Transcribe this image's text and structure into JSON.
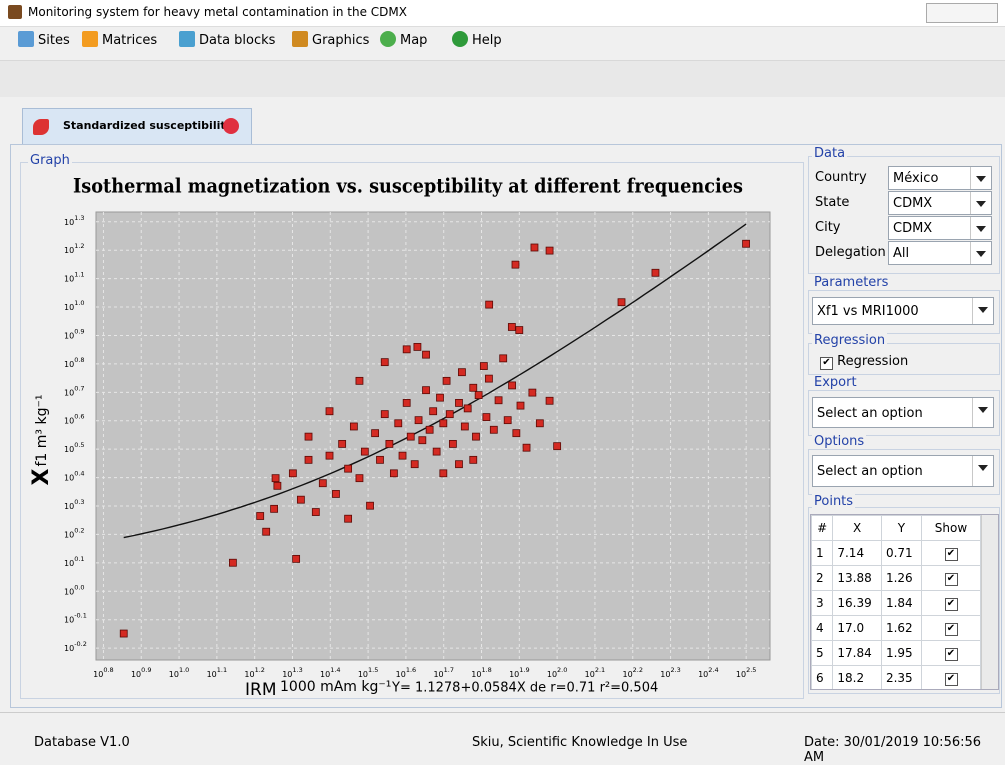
{
  "window": {
    "title": "Monitoring system for heavy metal contamination in the CDMX"
  },
  "menu": [
    "Sites",
    "Matrices",
    "Data blocks",
    "Graphics",
    "Map",
    "Help"
  ],
  "tab": {
    "label": "Standardized susceptibility"
  },
  "graph_panel": {
    "label": "Graph"
  },
  "chart_data": {
    "type": "scatter",
    "title": "Isothermal magnetization vs. susceptibility at different frequencies",
    "y_label": {
      "symbol": "X",
      "unit": "f1 m³ kg⁻¹"
    },
    "x_label": {
      "name": "IRM",
      "unit": "1000 mAm kg⁻¹"
    },
    "regression_label": "Y= 1.1278+0.0584X de r=0.71 r²=0.504",
    "regression": {
      "intercept": 1.1278,
      "slope": 0.0584
    },
    "xscale": "log",
    "yscale": "log",
    "grid": true,
    "color": "#d42a22",
    "xlim": [
      6.03,
      365.6
    ],
    "ylim": [
      0.573,
      21.6
    ],
    "xticks": [
      {
        "value": 6.31,
        "label": "10^0.8"
      },
      {
        "value": 7.943,
        "label": "10^0.9"
      },
      {
        "value": 10,
        "label": "10^1.0"
      },
      {
        "value": 12.589,
        "label": "10^1.1"
      },
      {
        "value": 15.849,
        "label": "10^1.2"
      },
      {
        "value": 19.953,
        "label": "10^1.3"
      },
      {
        "value": 25.119,
        "label": "10^1.4"
      },
      {
        "value": 31.623,
        "label": "10^1.5"
      },
      {
        "value": 39.811,
        "label": "10^1.6"
      },
      {
        "value": 50.119,
        "label": "10^1.7"
      },
      {
        "value": 63.096,
        "label": "10^1.8"
      },
      {
        "value": 79.433,
        "label": "10^1.9"
      },
      {
        "value": 100,
        "label": "10^2.0"
      },
      {
        "value": 125.893,
        "label": "10^2.1"
      },
      {
        "value": 158.489,
        "label": "10^2.2"
      },
      {
        "value": 199.526,
        "label": "10^2.3"
      },
      {
        "value": 251.189,
        "label": "10^2.4"
      },
      {
        "value": 316.228,
        "label": "10^2.5"
      }
    ],
    "yticks": [
      {
        "value": 0.631,
        "label": "10^-0.2"
      },
      {
        "value": 0.794,
        "label": "10^-0.1"
      },
      {
        "value": 1,
        "label": "10^0.0"
      },
      {
        "value": 1.259,
        "label": "10^0.1"
      },
      {
        "value": 1.585,
        "label": "10^0.2"
      },
      {
        "value": 1.995,
        "label": "10^0.3"
      },
      {
        "value": 2.512,
        "label": "10^0.4"
      },
      {
        "value": 3.162,
        "label": "10^0.5"
      },
      {
        "value": 3.981,
        "label": "10^0.6"
      },
      {
        "value": 5.012,
        "label": "10^0.7"
      },
      {
        "value": 6.31,
        "label": "10^0.8"
      },
      {
        "value": 7.943,
        "label": "10^0.9"
      },
      {
        "value": 10,
        "label": "10^1.0"
      },
      {
        "value": 12.589,
        "label": "10^1.1"
      },
      {
        "value": 15.849,
        "label": "10^1.2"
      },
      {
        "value": 19.953,
        "label": "10^1.3"
      }
    ],
    "x": [
      7.14,
      13.88,
      16.39,
      17.0,
      17.84,
      18.2,
      20.4,
      316,
      182,
      148,
      87.1,
      95.5,
      77.6,
      66.1,
      100,
      95.5,
      42.7,
      75.9,
      79.4,
      20,
      21,
      22,
      24,
      25,
      26,
      27,
      28,
      29,
      30,
      31,
      32,
      33,
      34,
      35,
      36,
      37,
      38,
      39,
      40,
      41,
      42,
      43,
      44,
      45,
      46,
      47,
      48,
      49,
      50,
      51,
      52,
      53,
      55,
      56,
      57,
      58,
      60,
      61,
      62,
      64,
      65,
      66,
      68,
      70,
      72,
      74,
      76,
      78,
      80,
      83,
      86,
      90,
      30,
      25,
      35,
      40,
      45,
      50,
      55,
      60,
      18,
      23,
      28,
      22
    ],
    "y": [
      0.71,
      1.26,
      1.84,
      1.62,
      1.95,
      2.35,
      1.3,
      16.7,
      13.2,
      10.4,
      16.2,
      15.8,
      14.1,
      10.2,
      3.24,
      4.68,
      7.24,
      8.51,
      8.3,
      2.6,
      2.1,
      2.9,
      2.4,
      3.0,
      2.2,
      3.3,
      2.7,
      3.8,
      2.5,
      3.1,
      2.0,
      3.6,
      2.9,
      4.2,
      3.3,
      2.6,
      3.9,
      3.0,
      4.6,
      3.5,
      2.8,
      4.0,
      3.4,
      5.1,
      3.7,
      4.3,
      3.1,
      4.8,
      3.9,
      5.5,
      4.2,
      3.3,
      4.6,
      5.9,
      3.8,
      4.4,
      5.2,
      3.5,
      4.9,
      6.2,
      4.1,
      5.6,
      3.7,
      4.7,
      6.6,
      4.0,
      5.3,
      3.6,
      4.5,
      3.2,
      5.0,
      3.9,
      5.5,
      4.3,
      6.4,
      7.1,
      6.8,
      2.6,
      2.8,
      2.9,
      2.5,
      1.9,
      1.8,
      3.5
    ]
  },
  "side": {
    "data_group": {
      "label": "Data",
      "rows": [
        [
          "Country",
          "México"
        ],
        [
          "State",
          "CDMX"
        ],
        [
          "City",
          "CDMX"
        ],
        [
          "Delegation",
          "All"
        ]
      ]
    },
    "parameters": {
      "label": "Parameters",
      "value": "Xf1 vs MRI1000"
    },
    "regression": {
      "label": "Regression",
      "checkbox": "Regression"
    },
    "export": {
      "label": "Export",
      "value": "Select an option"
    },
    "options": {
      "label": "Options",
      "value": "Select an option"
    },
    "points": {
      "label": "Points",
      "headers": [
        "#",
        "X",
        "Y",
        "Show"
      ],
      "rows": [
        [
          "1",
          "7.14",
          "0.71"
        ],
        [
          "2",
          "13.88",
          "1.26"
        ],
        [
          "3",
          "16.39",
          "1.84"
        ],
        [
          "4",
          "17.0",
          "1.62"
        ],
        [
          "5",
          "17.84",
          "1.95"
        ],
        [
          "6",
          "18.2",
          "2.35"
        ]
      ]
    }
  },
  "status": {
    "left": "Database V1.0",
    "center": "Skiu, Scientific Knowledge In Use",
    "right": "Date: 30/01/2019 10:56:56 AM"
  }
}
